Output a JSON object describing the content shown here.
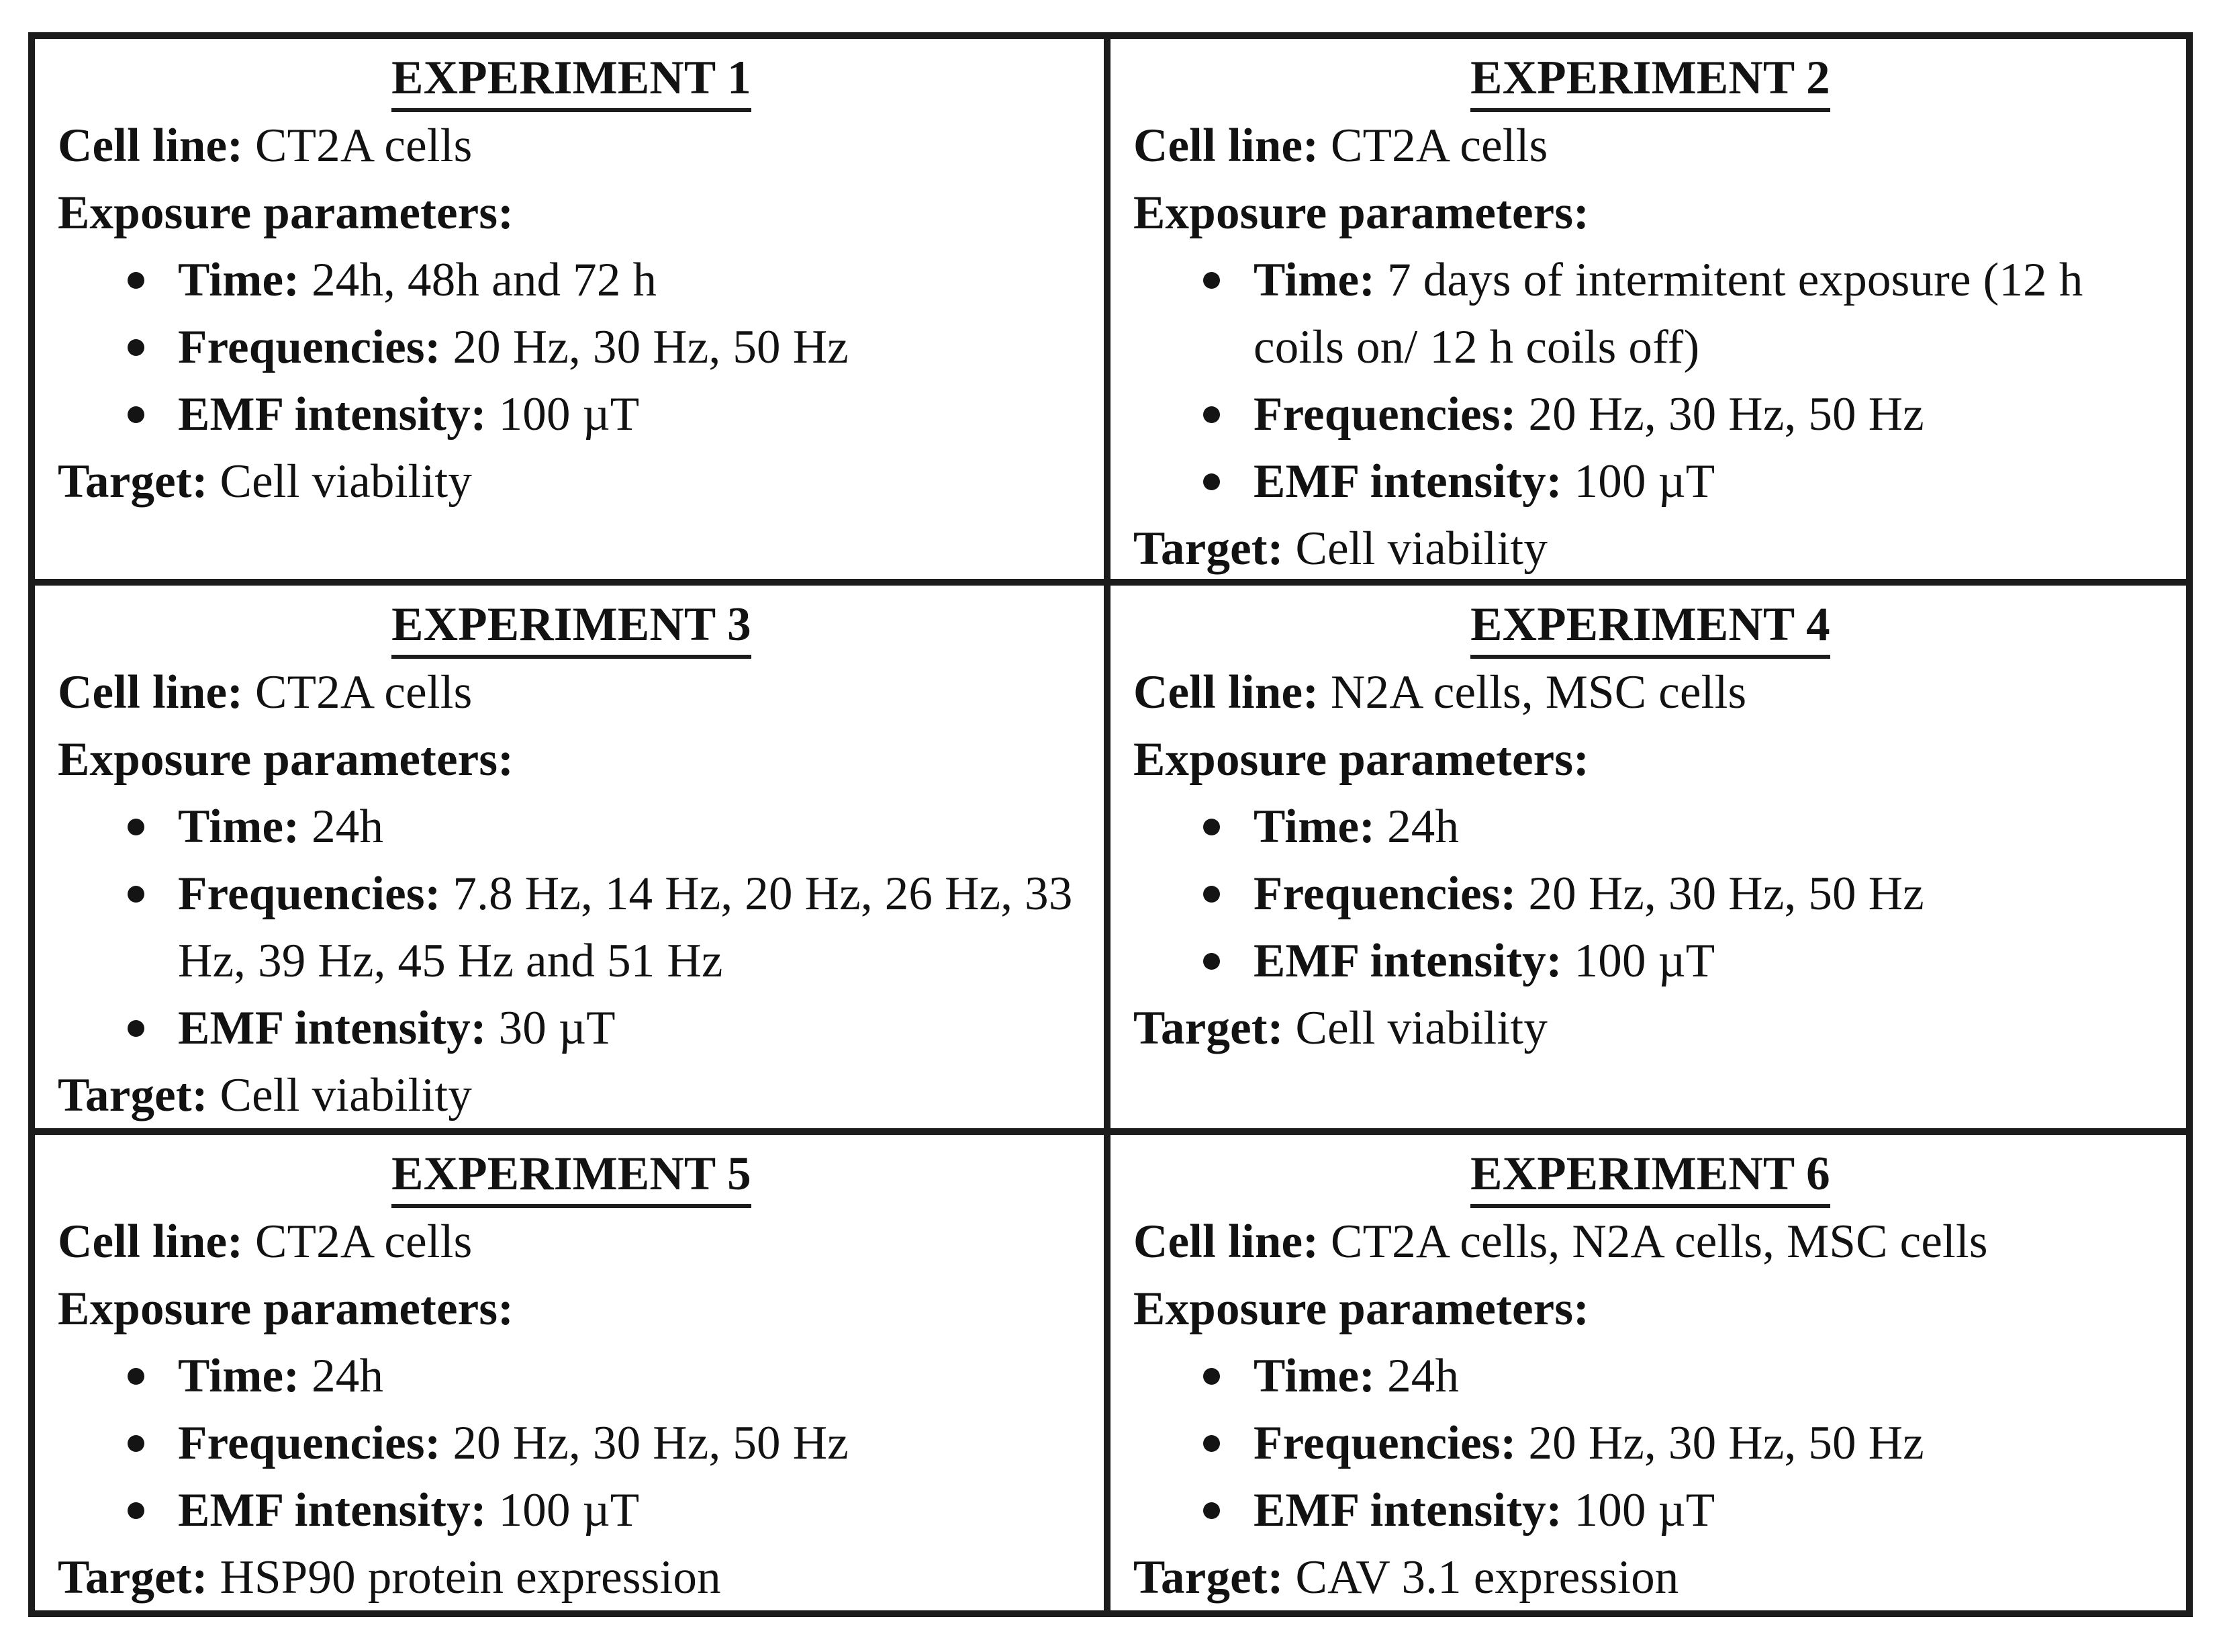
{
  "document": {
    "labels": {
      "cell_line": "Cell line:",
      "exposure": "Exposure parameters:",
      "time": "Time:",
      "frequencies": "Frequencies:",
      "emf": "EMF intensity:",
      "target": "Target:"
    },
    "experiments": [
      {
        "title": "EXPERIMENT 1",
        "cell_line": "CT2A cells",
        "time": "24h, 48h and 72 h",
        "frequencies": "20 Hz, 30 Hz, 50 Hz",
        "emf_intensity": "100 µT",
        "target": "Cell viability"
      },
      {
        "title": "EXPERIMENT 2",
        "cell_line": "CT2A cells",
        "time": "7 days of intermitent exposure (12 h coils on/ 12 h coils off)",
        "frequencies": "20 Hz, 30 Hz, 50 Hz",
        "emf_intensity": "100 µT",
        "target": "Cell viability"
      },
      {
        "title": "EXPERIMENT 3",
        "cell_line": "CT2A cells",
        "time": "24h",
        "frequencies": "7.8 Hz, 14 Hz, 20 Hz, 26 Hz, 33 Hz, 39 Hz, 45 Hz and 51 Hz",
        "emf_intensity": "30 µT",
        "target": "Cell viability"
      },
      {
        "title": "EXPERIMENT 4",
        "cell_line": "N2A cells, MSC cells",
        "time": "24h",
        "frequencies": "20 Hz, 30 Hz, 50 Hz",
        "emf_intensity": "100 µT",
        "target": "Cell viability"
      },
      {
        "title": "EXPERIMENT 5",
        "cell_line": "CT2A cells",
        "time": "24h",
        "frequencies": "20 Hz, 30 Hz, 50 Hz",
        "emf_intensity": "100 µT",
        "target": "HSP90 protein expression"
      },
      {
        "title": "EXPERIMENT 6",
        "cell_line": "CT2A cells, N2A cells, MSC cells",
        "time": "24h",
        "frequencies": "20 Hz, 30 Hz, 50 Hz",
        "emf_intensity": "100 µT",
        "target": "CAV 3.1 expression"
      }
    ]
  }
}
